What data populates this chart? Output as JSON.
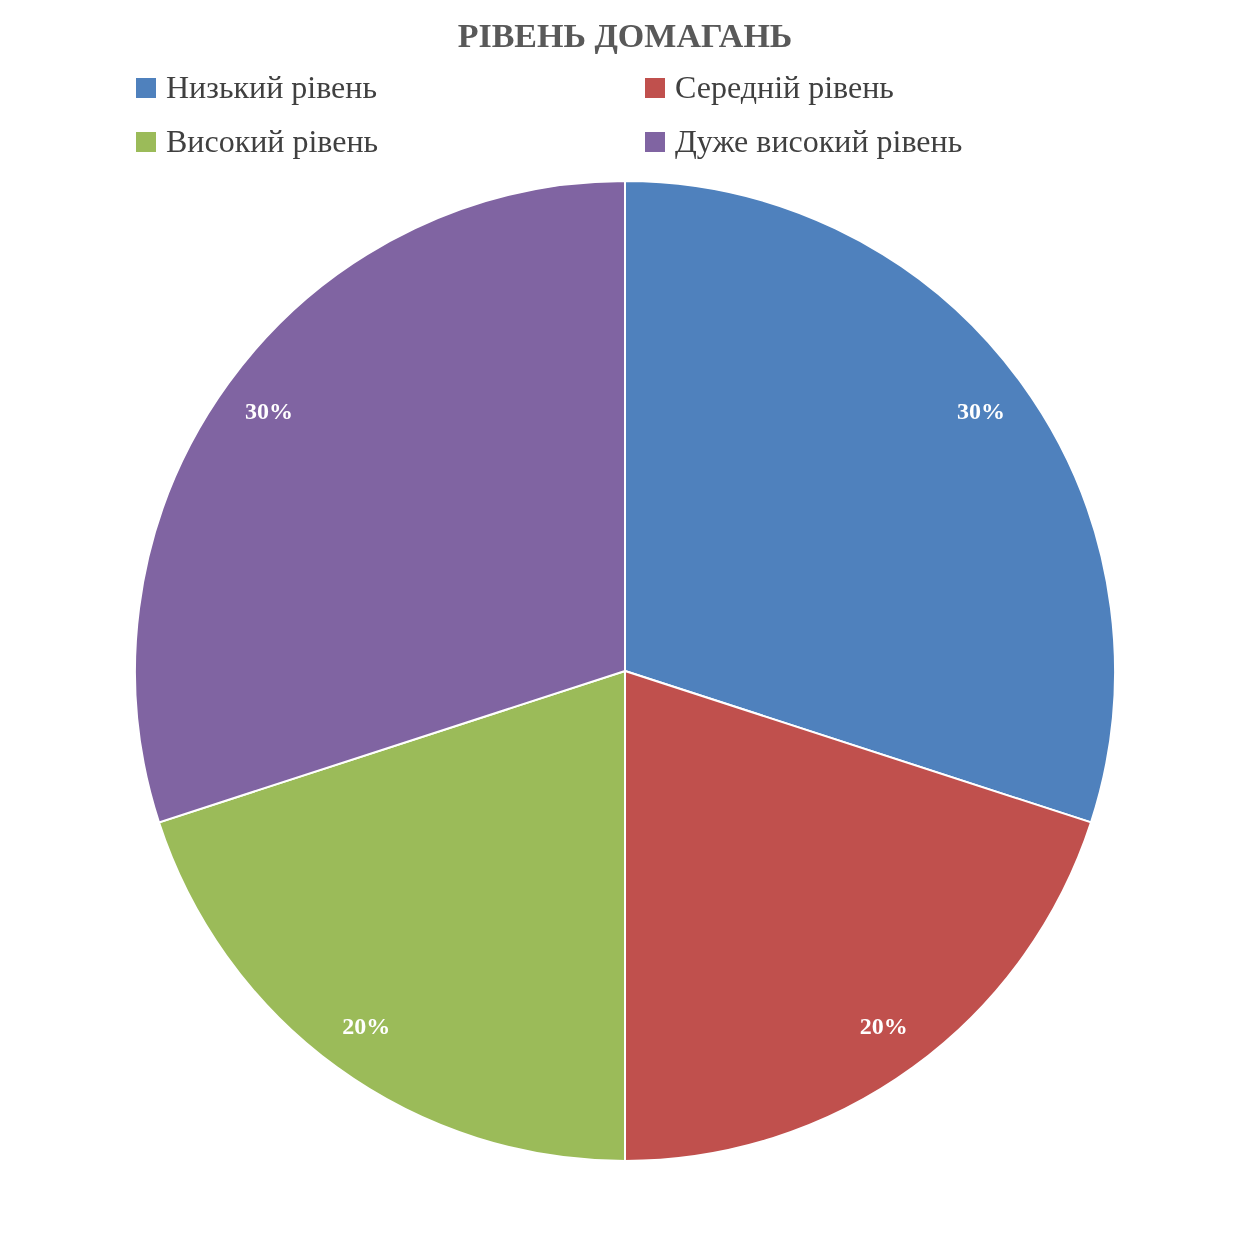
{
  "chart_data": {
    "type": "pie",
    "title": "РІВЕНЬ ДОМАГАНЬ",
    "categories": [
      "Низький рівень",
      "Середній рівень",
      "Високий рівень",
      "Дуже високий рівень"
    ],
    "values": [
      30,
      20,
      20,
      30
    ],
    "colors": [
      "#4f81bd",
      "#c0504d",
      "#9bbb59",
      "#8064a2"
    ],
    "value_labels": [
      "30%",
      "20%",
      "20%",
      "30%"
    ],
    "legend": "top"
  }
}
